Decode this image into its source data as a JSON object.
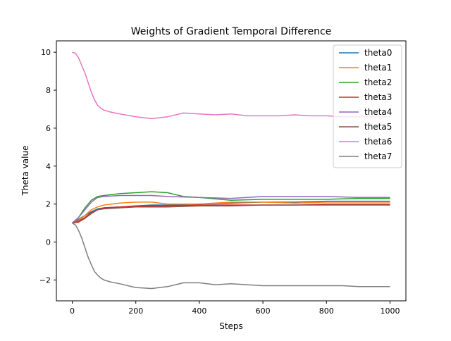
{
  "chart_data": {
    "type": "line",
    "title": "Weights of Gradient Temporal Difference",
    "xlabel": "Steps",
    "ylabel": "Theta value",
    "xlim": [
      -50,
      1050
    ],
    "ylim": [
      -3.1,
      10.6
    ],
    "xticks": [
      0,
      200,
      400,
      600,
      800,
      1000
    ],
    "xtick_labels": [
      "0",
      "200",
      "400",
      "600",
      "800",
      "1000"
    ],
    "yticks": [
      -2,
      0,
      2,
      4,
      6,
      8,
      10
    ],
    "ytick_labels": [
      "−2",
      "0",
      "2",
      "4",
      "6",
      "8",
      "10"
    ],
    "grid": false,
    "legend": "top-right",
    "series": [
      {
        "name": "theta0",
        "color": "#1f77b4",
        "x": [
          0,
          20,
          40,
          60,
          80,
          100,
          150,
          200,
          250,
          300,
          400,
          500,
          600,
          700,
          800,
          900,
          1000
        ],
        "values": [
          1.0,
          1.2,
          1.4,
          1.6,
          1.75,
          1.8,
          1.85,
          1.9,
          1.95,
          1.95,
          2.0,
          2.05,
          2.1,
          2.1,
          2.15,
          2.15,
          2.15
        ]
      },
      {
        "name": "theta1",
        "color": "#ff7f0e",
        "x": [
          0,
          20,
          40,
          60,
          80,
          100,
          150,
          200,
          250,
          300,
          400,
          500,
          600,
          700,
          800,
          900,
          1000
        ],
        "values": [
          1.0,
          1.15,
          1.4,
          1.7,
          1.85,
          1.95,
          2.05,
          2.1,
          2.1,
          2.0,
          2.0,
          2.1,
          2.1,
          2.05,
          2.1,
          2.1,
          2.1
        ]
      },
      {
        "name": "theta2",
        "color": "#2ca02c",
        "x": [
          0,
          20,
          40,
          60,
          80,
          100,
          150,
          200,
          250,
          300,
          350,
          400,
          500,
          600,
          700,
          800,
          900,
          1000
        ],
        "values": [
          1.0,
          1.3,
          1.8,
          2.2,
          2.4,
          2.45,
          2.55,
          2.6,
          2.65,
          2.6,
          2.4,
          2.35,
          2.2,
          2.25,
          2.25,
          2.25,
          2.3,
          2.3
        ]
      },
      {
        "name": "theta3",
        "color": "#d62728",
        "x": [
          0,
          20,
          40,
          60,
          80,
          100,
          150,
          200,
          250,
          300,
          400,
          500,
          600,
          700,
          800,
          900,
          1000
        ],
        "values": [
          1.0,
          1.05,
          1.25,
          1.5,
          1.7,
          1.8,
          1.85,
          1.9,
          1.9,
          1.9,
          1.95,
          1.95,
          1.95,
          1.95,
          2.0,
          2.0,
          2.0
        ]
      },
      {
        "name": "theta4",
        "color": "#9467bd",
        "x": [
          0,
          20,
          40,
          60,
          80,
          100,
          150,
          200,
          250,
          300,
          400,
          500,
          600,
          700,
          800,
          900,
          1000
        ],
        "values": [
          1.0,
          1.3,
          1.7,
          2.1,
          2.35,
          2.4,
          2.45,
          2.45,
          2.45,
          2.4,
          2.35,
          2.3,
          2.4,
          2.4,
          2.4,
          2.35,
          2.35
        ]
      },
      {
        "name": "theta5",
        "color": "#8c564b",
        "x": [
          0,
          20,
          40,
          60,
          80,
          100,
          150,
          200,
          250,
          300,
          400,
          500,
          600,
          700,
          800,
          900,
          1000
        ],
        "values": [
          1.0,
          1.1,
          1.3,
          1.55,
          1.7,
          1.75,
          1.8,
          1.85,
          1.85,
          1.85,
          1.9,
          1.9,
          1.95,
          1.95,
          1.95,
          1.95,
          1.95
        ]
      },
      {
        "name": "theta6",
        "color": "#e377c2",
        "x": [
          0,
          10,
          20,
          30,
          40,
          50,
          60,
          70,
          80,
          90,
          100,
          120,
          150,
          200,
          250,
          300,
          350,
          400,
          450,
          500,
          550,
          600,
          650,
          700,
          750,
          800,
          850,
          900,
          950,
          1000
        ],
        "values": [
          10.0,
          9.95,
          9.7,
          9.3,
          8.9,
          8.4,
          7.9,
          7.5,
          7.2,
          7.05,
          6.95,
          6.85,
          6.75,
          6.6,
          6.5,
          6.6,
          6.8,
          6.75,
          6.7,
          6.75,
          6.65,
          6.65,
          6.65,
          6.7,
          6.65,
          6.65,
          6.6,
          6.6,
          6.6,
          6.6
        ]
      },
      {
        "name": "theta7",
        "color": "#7f7f7f",
        "x": [
          0,
          10,
          20,
          30,
          40,
          50,
          60,
          70,
          80,
          90,
          100,
          120,
          150,
          200,
          250,
          300,
          350,
          400,
          450,
          500,
          550,
          600,
          650,
          700,
          750,
          800,
          850,
          900,
          950,
          1000
        ],
        "values": [
          1.0,
          0.9,
          0.6,
          0.2,
          -0.3,
          -0.8,
          -1.2,
          -1.55,
          -1.75,
          -1.9,
          -2.0,
          -2.1,
          -2.2,
          -2.4,
          -2.45,
          -2.35,
          -2.15,
          -2.15,
          -2.25,
          -2.2,
          -2.25,
          -2.3,
          -2.3,
          -2.3,
          -2.3,
          -2.3,
          -2.3,
          -2.35,
          -2.35,
          -2.35
        ]
      }
    ]
  }
}
